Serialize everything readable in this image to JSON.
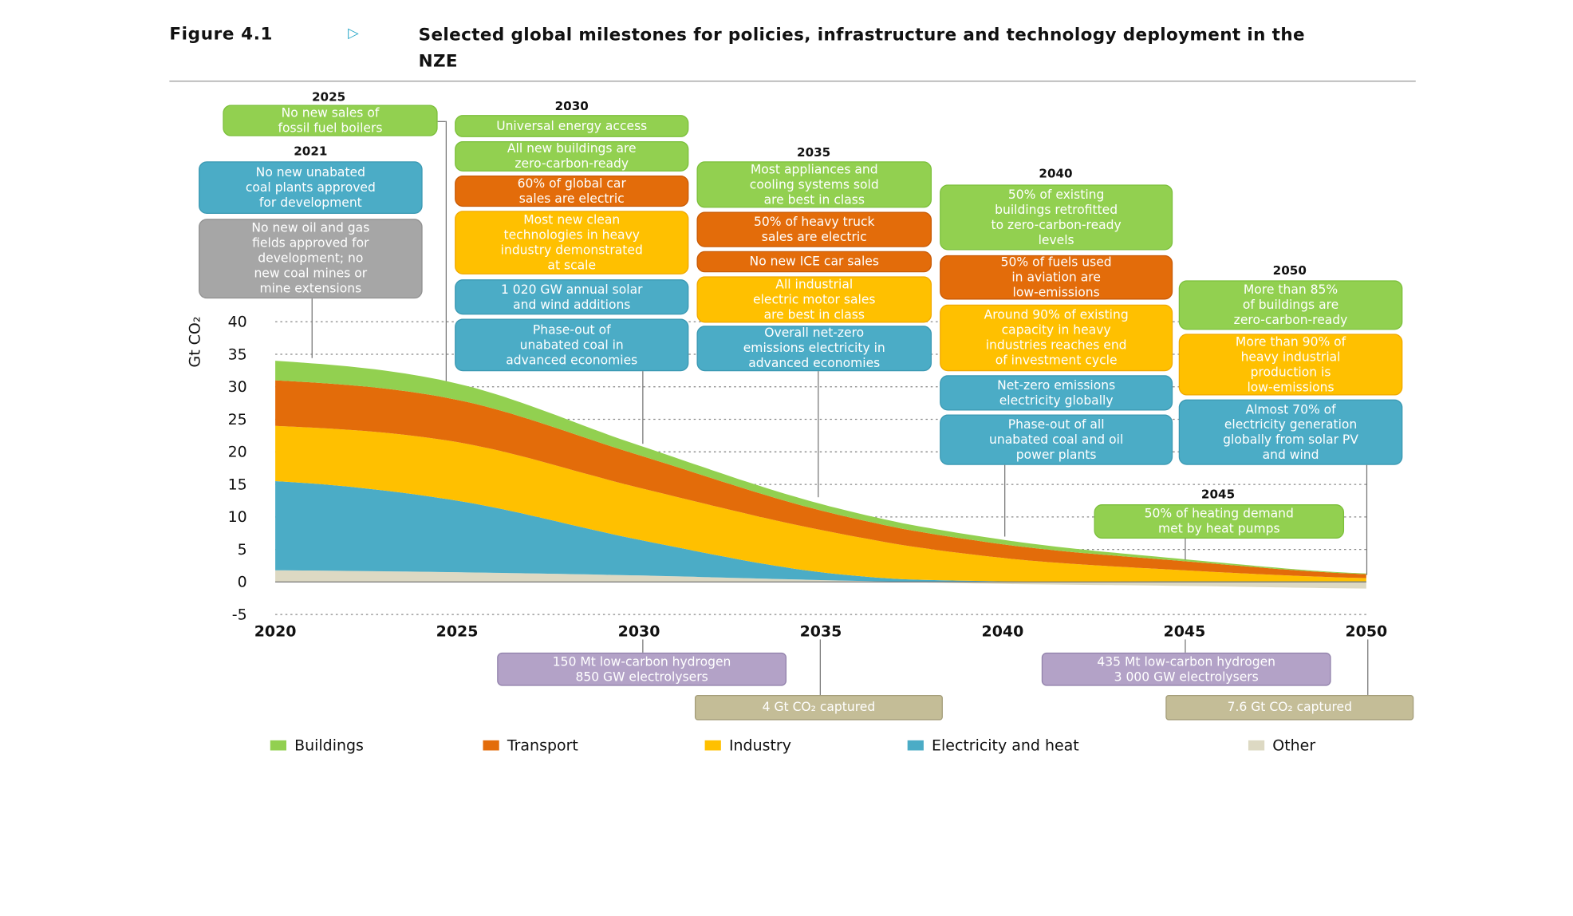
{
  "figure": {
    "number": "Figure 4.1",
    "arrow_icon": "triangle-right-icon",
    "title": "Selected global milestones for policies, infrastructure and technology deployment in the NZE"
  },
  "colors": {
    "buildings": "#92d050",
    "transport": "#e36c0a",
    "industry": "#ffc000",
    "electricity": "#4bacc6",
    "other": "#ddd9c3",
    "policy_gray": "#a6a6a6",
    "hydrogen": "#b3a2c7",
    "capture": "#c4bd97"
  },
  "milestones": {
    "y2021": {
      "year": "2021",
      "items": [
        {
          "text": "No new unabated\ncoal plants approved\nfor development",
          "color": "electricity"
        },
        {
          "text": "No new oil and gas\nfields approved for\ndevelopment; no\nnew coal mines or\nmine extensions",
          "color": "policy_gray"
        }
      ]
    },
    "y2025": {
      "year": "2025",
      "items": [
        {
          "text": "No new sales of\nfossil fuel boilers",
          "color": "buildings"
        }
      ]
    },
    "y2030": {
      "year": "2030",
      "items": [
        {
          "text": "Universal energy access",
          "color": "buildings"
        },
        {
          "text": "All new buildings are\nzero-carbon-ready",
          "color": "buildings"
        },
        {
          "text": "60% of global car\nsales are electric",
          "color": "transport"
        },
        {
          "text": "Most new clean\ntechnologies in heavy\nindustry demonstrated\nat scale",
          "color": "industry"
        },
        {
          "text": "1 020 GW annual solar\nand wind additions",
          "color": "electricity"
        },
        {
          "text": "Phase-out of\nunabated coal in\nadvanced economies",
          "color": "electricity"
        }
      ]
    },
    "y2035": {
      "year": "2035",
      "items": [
        {
          "text": "Most appliances and\ncooling systems sold\nare best in class",
          "color": "buildings"
        },
        {
          "text": "50% of heavy truck\nsales are electric",
          "color": "transport"
        },
        {
          "text": "No new ICE car sales",
          "color": "transport"
        },
        {
          "text": "All industrial\nelectric motor sales\nare best in class",
          "color": "industry"
        },
        {
          "text": "Overall net-zero\nemissions electricity in\nadvanced economies",
          "color": "electricity"
        }
      ]
    },
    "y2040": {
      "year": "2040",
      "items": [
        {
          "text": "50% of existing\nbuildings retrofitted\nto zero-carbon-ready\nlevels",
          "color": "buildings"
        },
        {
          "text": "50% of fuels used\nin aviation are\nlow-emissions",
          "color": "transport"
        },
        {
          "text": "Around 90% of existing\ncapacity in heavy\nindustries reaches end\nof investment cycle",
          "color": "industry"
        },
        {
          "text": "Net-zero emissions\nelectricity globally",
          "color": "electricity"
        },
        {
          "text": "Phase-out of all\nunabated coal and oil\npower plants",
          "color": "electricity"
        }
      ]
    },
    "y2045": {
      "year": "2045",
      "items": [
        {
          "text": "50% of heating demand\nmet by heat pumps",
          "color": "buildings"
        }
      ]
    },
    "y2050": {
      "year": "2050",
      "items": [
        {
          "text": "More than 85%\nof buildings are\nzero-carbon-ready",
          "color": "buildings"
        },
        {
          "text": "More than 90% of\nheavy industrial\nproduction is\nlow-emissions",
          "color": "industry"
        },
        {
          "text": "Almost 70% of\nelectricity generation\nglobally from solar PV\nand wind",
          "color": "electricity"
        }
      ]
    },
    "below": [
      {
        "text": "150 Mt low-carbon hydrogen\n850 GW electrolysers",
        "year": "2030"
      },
      {
        "text": "435 Mt low-carbon hydrogen\n3 000 GW electrolysers",
        "year": "2045"
      },
      {
        "text": "4 Gt CO₂ captured",
        "year": "2035"
      },
      {
        "text": "7.6 Gt CO₂ captured",
        "year": "2050"
      }
    ]
  },
  "chart_data": {
    "type": "area",
    "stacked": true,
    "ylabel": "Gt CO₂",
    "ylim": [
      -5,
      40
    ],
    "yticks": [
      "-5",
      "0",
      "5",
      "10",
      "15",
      "20",
      "25",
      "30",
      "35",
      "40"
    ],
    "xlim": [
      2020,
      2050
    ],
    "xticks": [
      "2020",
      "2025",
      "2030",
      "2035",
      "2040",
      "2045",
      "2050"
    ],
    "grid": "horizontal dotted",
    "legend_placement": "bottom",
    "x": [
      2020,
      2025,
      2030,
      2035,
      2040,
      2045,
      2050
    ],
    "series": [
      {
        "name": "Other",
        "key": "other",
        "values": [
          1.8,
          1.5,
          1.0,
          0.3,
          -0.3,
          -0.6,
          -1.0
        ]
      },
      {
        "name": "Electricity and heat",
        "key": "electricity",
        "values": [
          13.7,
          11.0,
          5.5,
          1.2,
          0.1,
          0.1,
          0.1
        ]
      },
      {
        "name": "Industry",
        "key": "industry",
        "values": [
          8.5,
          9.0,
          8.0,
          6.5,
          3.6,
          1.7,
          0.5
        ]
      },
      {
        "name": "Transport",
        "key": "transport",
        "values": [
          7.0,
          6.5,
          5.0,
          3.0,
          2.1,
          1.4,
          0.6
        ]
      },
      {
        "name": "Buildings",
        "key": "buildings",
        "values": [
          3.0,
          2.5,
          1.5,
          1.0,
          0.7,
          0.3,
          0.1
        ]
      }
    ]
  },
  "legend": [
    {
      "label": "Buildings",
      "key": "buildings"
    },
    {
      "label": "Transport",
      "key": "transport"
    },
    {
      "label": "Industry",
      "key": "industry"
    },
    {
      "label": "Electricity and heat",
      "key": "electricity"
    },
    {
      "label": "Other",
      "key": "other"
    }
  ]
}
